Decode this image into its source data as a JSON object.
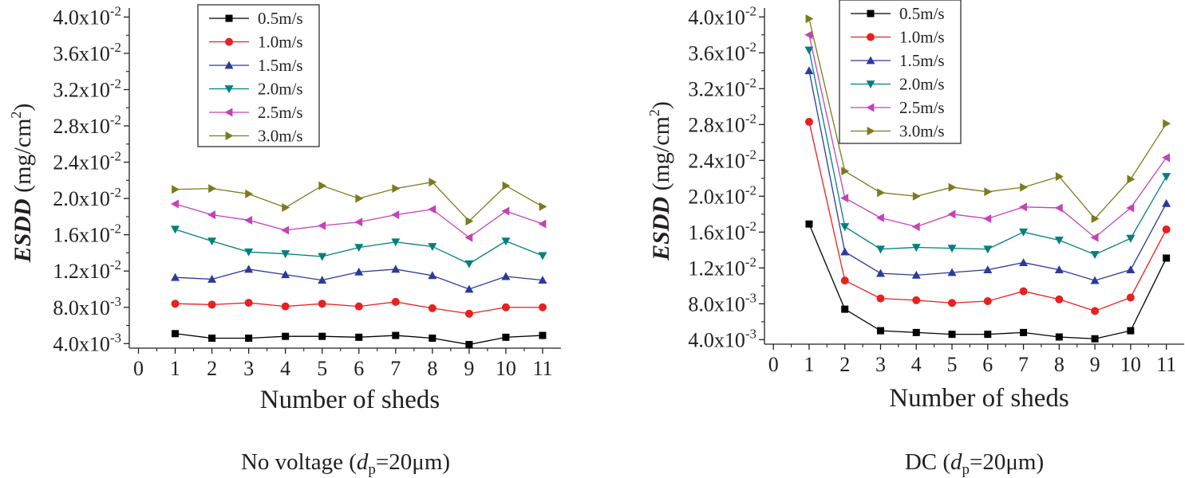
{
  "colors": {
    "axis": "#231f20",
    "series": [
      "#000000",
      "#e8201f",
      "#2b3a9b",
      "#00807f",
      "#c642b7",
      "#7d7a1e"
    ]
  },
  "legend_labels": [
    "0.5m/s",
    "1.0m/s",
    "1.5m/s",
    "2.0m/s",
    "2.5m/s",
    "3.0m/s"
  ],
  "chart_data": [
    {
      "type": "line",
      "title": "",
      "xlabel": "Number of sheds",
      "ylabel_main": "ESDD",
      "ylabel_unit": "(mg/cm",
      "ylabel_sup": "2",
      "ylabel_close": ")",
      "caption": {
        "prefix": "No voltage (",
        "var": "d",
        "sub": "p",
        "suffix": "=20μm)"
      },
      "xlim": [
        0,
        11
      ],
      "ylim": [
        0.0035,
        0.041
      ],
      "x_ticks": [
        "0",
        "1",
        "2",
        "3",
        "4",
        "5",
        "6",
        "7",
        "8",
        "9",
        "10",
        "11"
      ],
      "y_ticks": [
        {
          "value": 0.004,
          "mantissa": "4.0x10",
          "exp": "-3"
        },
        {
          "value": 0.008,
          "mantissa": "8.0x10",
          "exp": "-3"
        },
        {
          "value": 0.012,
          "mantissa": "1.2x10",
          "exp": "-2"
        },
        {
          "value": 0.016,
          "mantissa": "1.6x10",
          "exp": "-2"
        },
        {
          "value": 0.02,
          "mantissa": "2.0x10",
          "exp": "-2"
        },
        {
          "value": 0.024,
          "mantissa": "2.4x10",
          "exp": "-2"
        },
        {
          "value": 0.028,
          "mantissa": "2.8x10",
          "exp": "-2"
        },
        {
          "value": 0.032,
          "mantissa": "3.2x10",
          "exp": "-2"
        },
        {
          "value": 0.036,
          "mantissa": "3.6x10",
          "exp": "-2"
        },
        {
          "value": 0.04,
          "mantissa": "4.0x10",
          "exp": "-2"
        }
      ],
      "x": [
        1,
        2,
        3,
        4,
        5,
        6,
        7,
        8,
        9,
        10,
        11
      ],
      "series": [
        {
          "name": "0.5m/s",
          "marker": "square",
          "values": [
            0.0051,
            0.0046,
            0.0046,
            0.0048,
            0.0048,
            0.0047,
            0.0049,
            0.0046,
            0.0039,
            0.0047,
            0.0049
          ]
        },
        {
          "name": "1.0m/s",
          "marker": "circle",
          "values": [
            0.0084,
            0.0083,
            0.0085,
            0.0081,
            0.0084,
            0.0081,
            0.0086,
            0.0079,
            0.0073,
            0.008,
            0.008
          ]
        },
        {
          "name": "1.5m/s",
          "marker": "triangle-up",
          "values": [
            0.0113,
            0.0111,
            0.0122,
            0.0116,
            0.011,
            0.0119,
            0.0122,
            0.0115,
            0.01,
            0.0114,
            0.011
          ]
        },
        {
          "name": "2.0m/s",
          "marker": "triangle-down",
          "values": [
            0.0166,
            0.0153,
            0.0141,
            0.0139,
            0.0136,
            0.0146,
            0.0152,
            0.0147,
            0.0128,
            0.0153,
            0.0137
          ]
        },
        {
          "name": "2.5m/s",
          "marker": "triangle-left",
          "values": [
            0.0194,
            0.0182,
            0.0176,
            0.0165,
            0.017,
            0.0174,
            0.0182,
            0.0188,
            0.0157,
            0.0186,
            0.0172
          ]
        },
        {
          "name": "3.0m/s",
          "marker": "triangle-right",
          "values": [
            0.021,
            0.0211,
            0.0205,
            0.019,
            0.0214,
            0.02,
            0.0211,
            0.0218,
            0.0175,
            0.0214,
            0.0191
          ]
        }
      ]
    },
    {
      "type": "line",
      "title": "",
      "xlabel": "Number of sheds",
      "ylabel_main": "ESDD",
      "ylabel_unit": "(mg/cm",
      "ylabel_sup": "2",
      "ylabel_close": ")",
      "caption": {
        "prefix": "DC (",
        "var": "d",
        "sub": "p",
        "suffix": "=20μm)"
      },
      "xlim": [
        0,
        11
      ],
      "ylim": [
        0.0035,
        0.041
      ],
      "x_ticks": [
        "0",
        "1",
        "2",
        "3",
        "4",
        "5",
        "6",
        "7",
        "8",
        "9",
        "10",
        "11"
      ],
      "y_ticks": [
        {
          "value": 0.004,
          "mantissa": "4.0x10",
          "exp": "-3"
        },
        {
          "value": 0.008,
          "mantissa": "8.0x10",
          "exp": "-3"
        },
        {
          "value": 0.012,
          "mantissa": "1.2x10",
          "exp": "-2"
        },
        {
          "value": 0.016,
          "mantissa": "1.6x10",
          "exp": "-2"
        },
        {
          "value": 0.02,
          "mantissa": "2.0x10",
          "exp": "-2"
        },
        {
          "value": 0.024,
          "mantissa": "2.4x10",
          "exp": "-2"
        },
        {
          "value": 0.028,
          "mantissa": "2.8x10",
          "exp": "-2"
        },
        {
          "value": 0.032,
          "mantissa": "3.2x10",
          "exp": "-2"
        },
        {
          "value": 0.036,
          "mantissa": "3.6x10",
          "exp": "-2"
        },
        {
          "value": 0.04,
          "mantissa": "4.0x10",
          "exp": "-2"
        }
      ],
      "x": [
        1,
        2,
        3,
        4,
        5,
        6,
        7,
        8,
        9,
        10,
        11
      ],
      "series": [
        {
          "name": "0.5m/s",
          "marker": "square",
          "values": [
            0.0169,
            0.0074,
            0.005,
            0.0048,
            0.0046,
            0.0046,
            0.0048,
            0.0043,
            0.0041,
            0.005,
            0.0131
          ]
        },
        {
          "name": "1.0m/s",
          "marker": "circle",
          "values": [
            0.0283,
            0.0106,
            0.0086,
            0.0084,
            0.0081,
            0.0083,
            0.0094,
            0.0085,
            0.0072,
            0.0087,
            0.0163
          ]
        },
        {
          "name": "1.5m/s",
          "marker": "triangle-up",
          "values": [
            0.034,
            0.0138,
            0.0114,
            0.0112,
            0.0115,
            0.0118,
            0.0126,
            0.0118,
            0.0106,
            0.0118,
            0.0192
          ]
        },
        {
          "name": "2.0m/s",
          "marker": "triangle-down",
          "values": [
            0.0363,
            0.0166,
            0.0141,
            0.0143,
            0.0142,
            0.0141,
            0.016,
            0.0151,
            0.0135,
            0.0153,
            0.0222
          ]
        },
        {
          "name": "2.5m/s",
          "marker": "triangle-left",
          "values": [
            0.038,
            0.0198,
            0.0176,
            0.0166,
            0.018,
            0.0175,
            0.0188,
            0.0187,
            0.0154,
            0.0187,
            0.0243
          ]
        },
        {
          "name": "3.0m/s",
          "marker": "triangle-right",
          "values": [
            0.0398,
            0.0228,
            0.0204,
            0.02,
            0.021,
            0.0205,
            0.021,
            0.0222,
            0.0175,
            0.0219,
            0.0281
          ]
        }
      ]
    }
  ]
}
